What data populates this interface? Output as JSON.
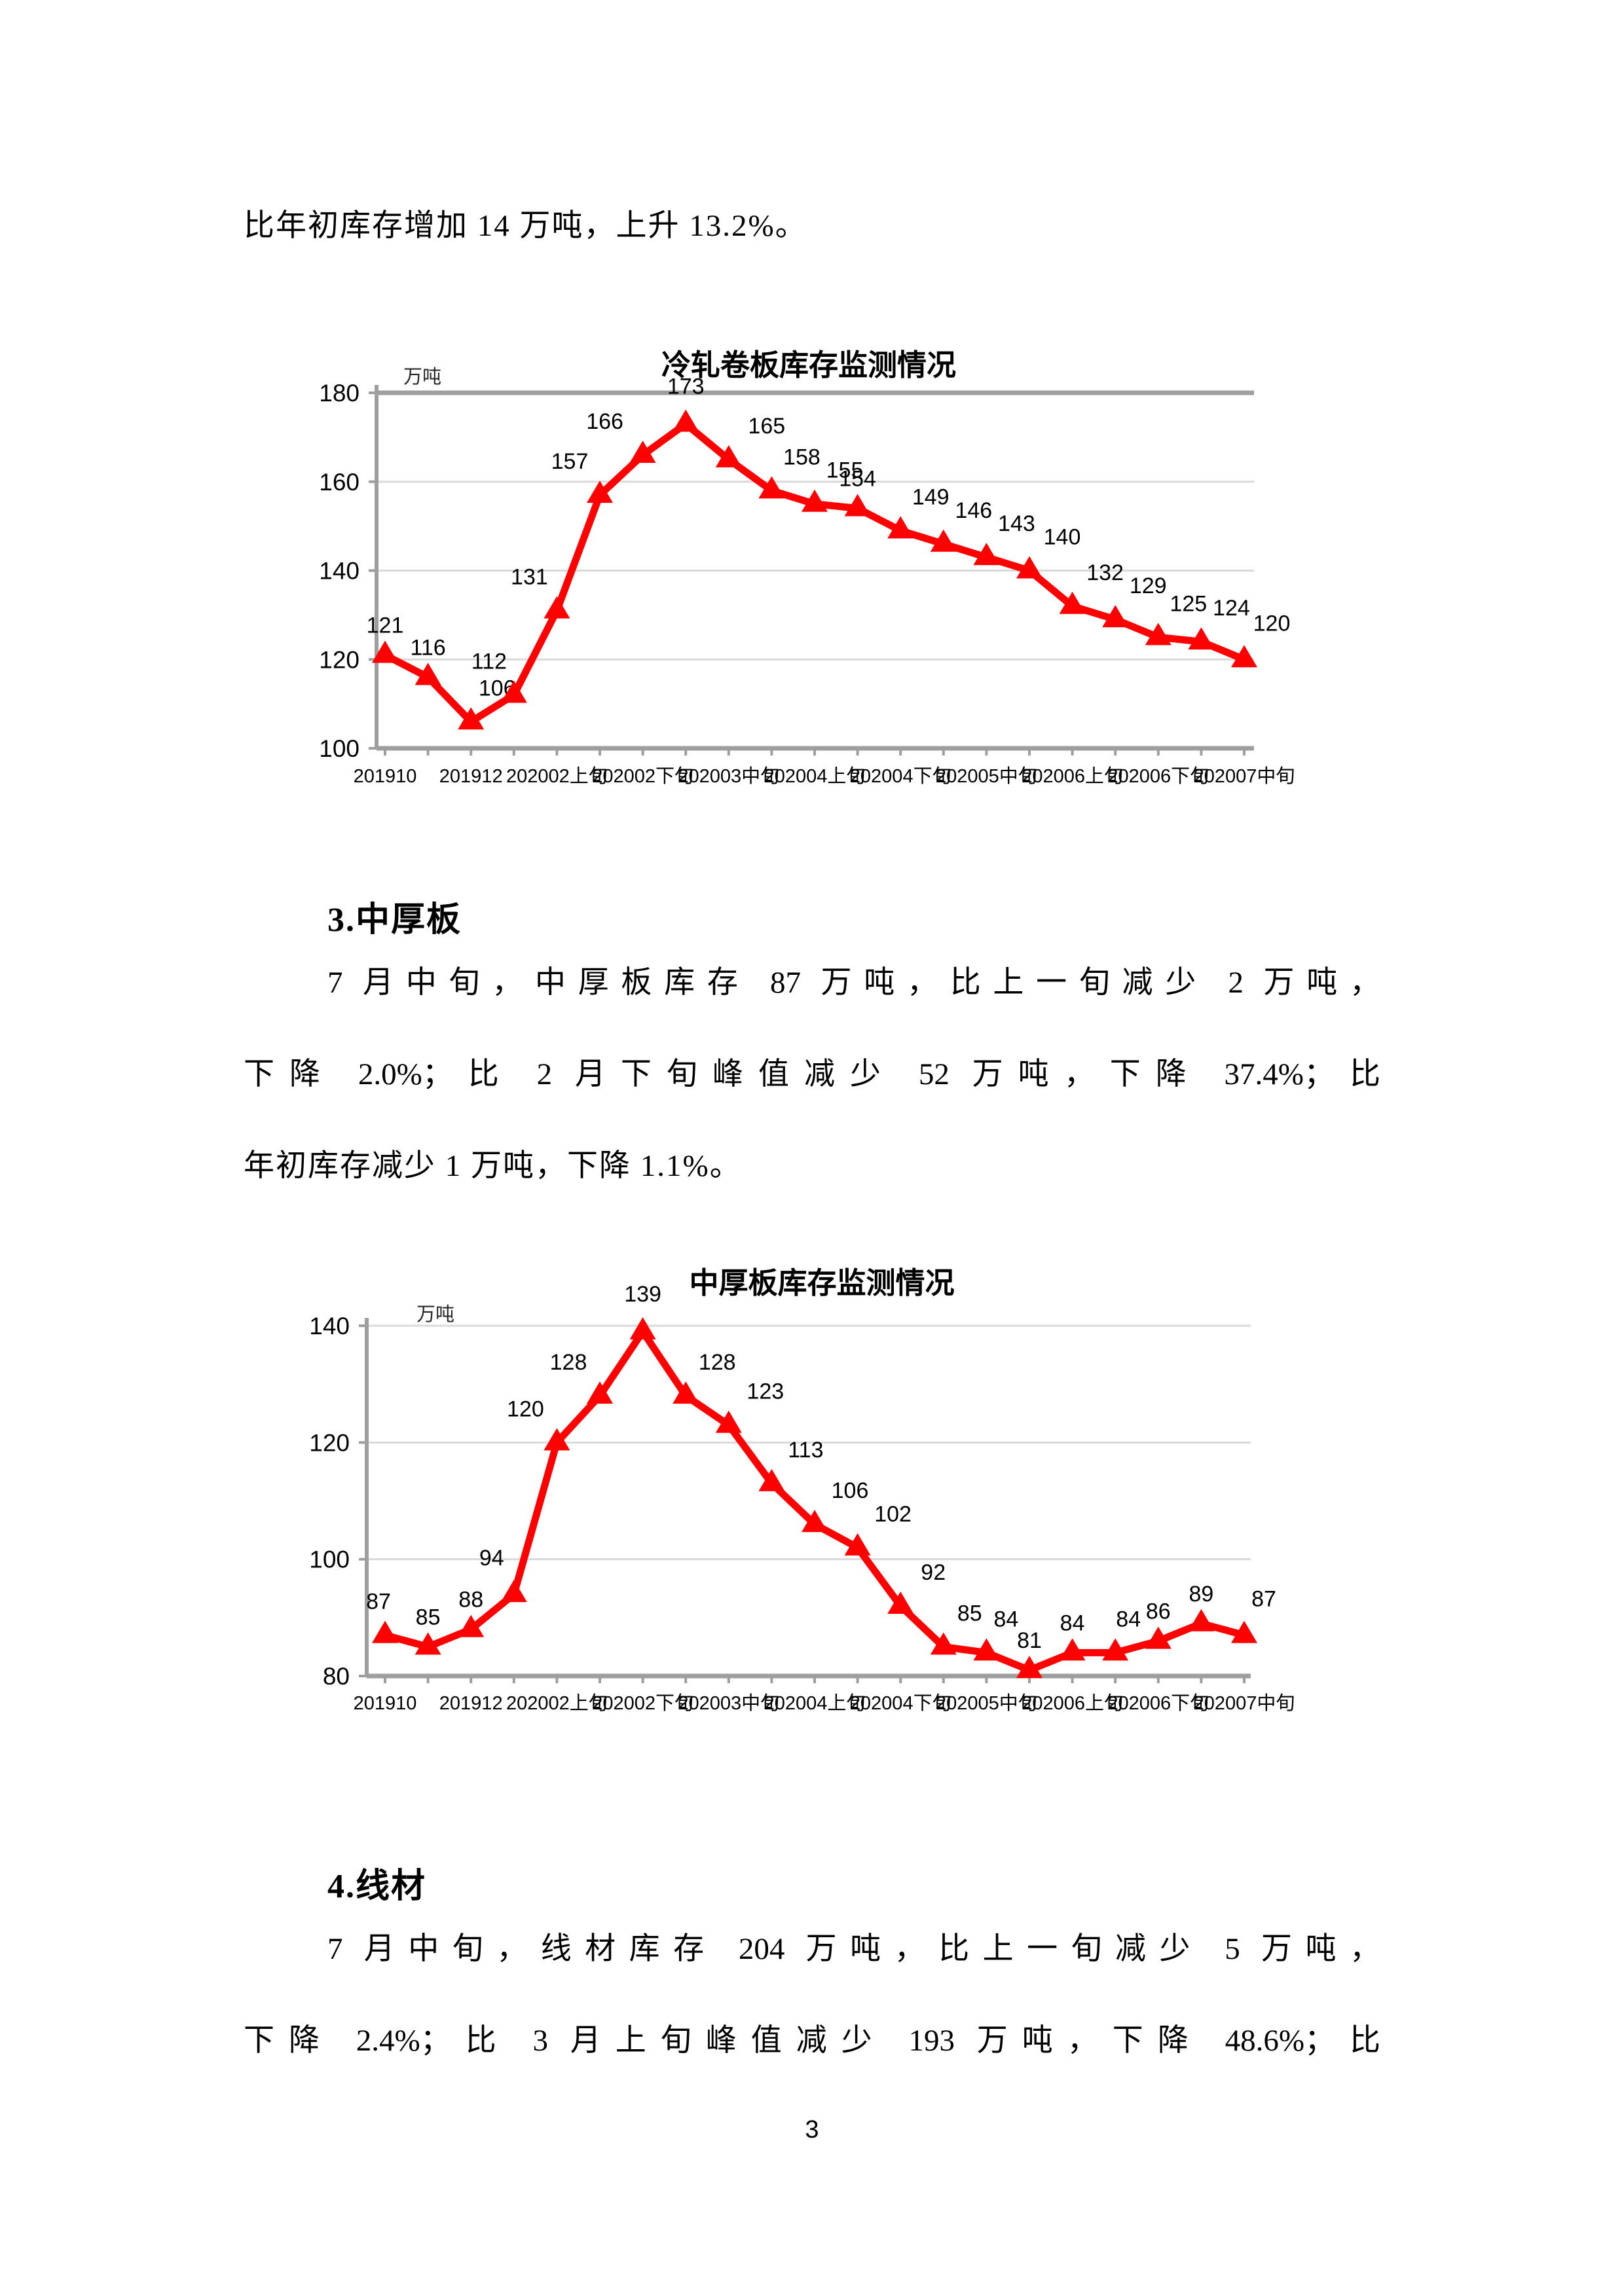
{
  "intro": {
    "text": "比年初库存增加 14 万吨，上升 13.2%。"
  },
  "section3": {
    "heading": "3.中厚板",
    "line1": "7 月中旬，中厚板库存 87 万吨，比上一旬减少 2 万吨，",
    "line2": "下降 2.0%；比 2 月下旬峰值减少 52 万吨，下降 37.4%；比",
    "line3": "年初库存减少 1 万吨，下降 1.1%。"
  },
  "section4": {
    "heading": "4.线材",
    "line1": "7 月中旬，线材库存 204 万吨，比上一旬减少 5 万吨，",
    "line2": "下降 2.4%；比 3 月上旬峰值减少 193 万吨，下降 48.6%；比"
  },
  "page": {
    "number": "3"
  },
  "chart_data": [
    {
      "type": "line",
      "title": "冷轧卷板库存监测情况",
      "unit": "万吨",
      "x_labels": [
        "201910",
        "201912",
        "202002上旬",
        "202002下旬",
        "202003中旬",
        "202004上旬",
        "202004下旬",
        "202005中旬",
        "202006上旬",
        "202006下旬",
        "202007中旬"
      ],
      "x_tick_indices": [
        0,
        2,
        4,
        6,
        8,
        10,
        12,
        14,
        16,
        18,
        20
      ],
      "values": [
        121,
        116,
        106,
        112,
        131,
        157,
        166,
        173,
        165,
        158,
        155,
        154,
        149,
        146,
        143,
        140,
        132,
        129,
        125,
        124,
        120
      ],
      "ylim": [
        100,
        180
      ],
      "yticks": [
        180,
        160,
        140,
        120,
        100
      ],
      "grid": true,
      "legend": "none",
      "heavy_top_grid": true,
      "colors": {
        "line": "#fe0000",
        "grid": "#d9d9d9",
        "axis": "#9e9e9e"
      },
      "label_offsets": {
        "2": [
          40,
          -6
        ],
        "3": [
          -38,
          -6
        ],
        "4": [
          -42,
          -6
        ],
        "5": [
          -46,
          -6
        ],
        "6": [
          -58,
          -6
        ],
        "7": [
          0,
          -12
        ],
        "8": [
          58,
          -6
        ],
        "9": [
          46,
          -6
        ],
        "10": [
          46,
          -6
        ],
        "12": [
          46,
          -6
        ],
        "13": [
          46,
          -6
        ],
        "14": [
          46,
          -6
        ],
        "15": [
          50,
          -6
        ],
        "16": [
          50,
          -6
        ],
        "17": [
          50,
          -6
        ],
        "18": [
          46,
          -6
        ],
        "19": [
          46,
          -6
        ],
        "20": [
          42,
          -10
        ]
      },
      "geometry": {
        "title_x": 1235,
        "title_y": 118,
        "title_size": 45,
        "unit_x": 616,
        "unit_y": 130,
        "unit_size": 29,
        "plot_left": 575,
        "plot_right": 1915,
        "plot_top": 145,
        "plot_bottom": 688,
        "x_first": 588,
        "x_last": 1900,
        "xlabel_y": 740,
        "xtick_size": 29,
        "ytick_size": 37,
        "label_size": 34
      }
    },
    {
      "type": "line",
      "title": "中厚板库存监测情况",
      "unit": "万吨",
      "x_labels": [
        "201910",
        "201912",
        "202002上旬",
        "202002下旬",
        "202003中旬",
        "202004上旬",
        "202004下旬",
        "202005中旬",
        "202006上旬",
        "202006下旬",
        "202007中旬"
      ],
      "x_tick_indices": [
        0,
        2,
        4,
        6,
        8,
        10,
        12,
        14,
        16,
        18,
        20
      ],
      "values": [
        87,
        85,
        88,
        94,
        120,
        128,
        139,
        128,
        123,
        113,
        106,
        102,
        92,
        85,
        84,
        81,
        84,
        84,
        86,
        89,
        87
      ],
      "ylim": [
        80,
        140
      ],
      "yticks": [
        140,
        120,
        100,
        80
      ],
      "grid": true,
      "legend": "none",
      "heavy_top_grid": false,
      "colors": {
        "line": "#fe0000",
        "grid": "#d9d9d9",
        "axis": "#9e9e9e"
      },
      "label_offsets": {
        "0": [
          -10,
          -6
        ],
        "3": [
          -34,
          -10
        ],
        "4": [
          -48,
          -6
        ],
        "5": [
          -48,
          -6
        ],
        "6": [
          0,
          -12
        ],
        "7": [
          48,
          -6
        ],
        "8": [
          56,
          -6
        ],
        "9": [
          52,
          -6
        ],
        "10": [
          54,
          -6
        ],
        "11": [
          54,
          -6
        ],
        "12": [
          50,
          -6
        ],
        "13": [
          40,
          -6
        ],
        "14": [
          30,
          -6
        ],
        "17": [
          20,
          -6
        ],
        "20": [
          30,
          -10
        ]
      },
      "geometry": {
        "title_x": 1255,
        "title_y": 90,
        "title_size": 45,
        "unit_x": 636,
        "unit_y": 132,
        "unit_size": 29,
        "plot_left": 560,
        "plot_right": 1910,
        "plot_top": 140,
        "plot_bottom": 675,
        "x_first": 588,
        "x_last": 1900,
        "xlabel_y": 726,
        "xtick_size": 29,
        "ytick_size": 37,
        "label_size": 34
      }
    }
  ]
}
